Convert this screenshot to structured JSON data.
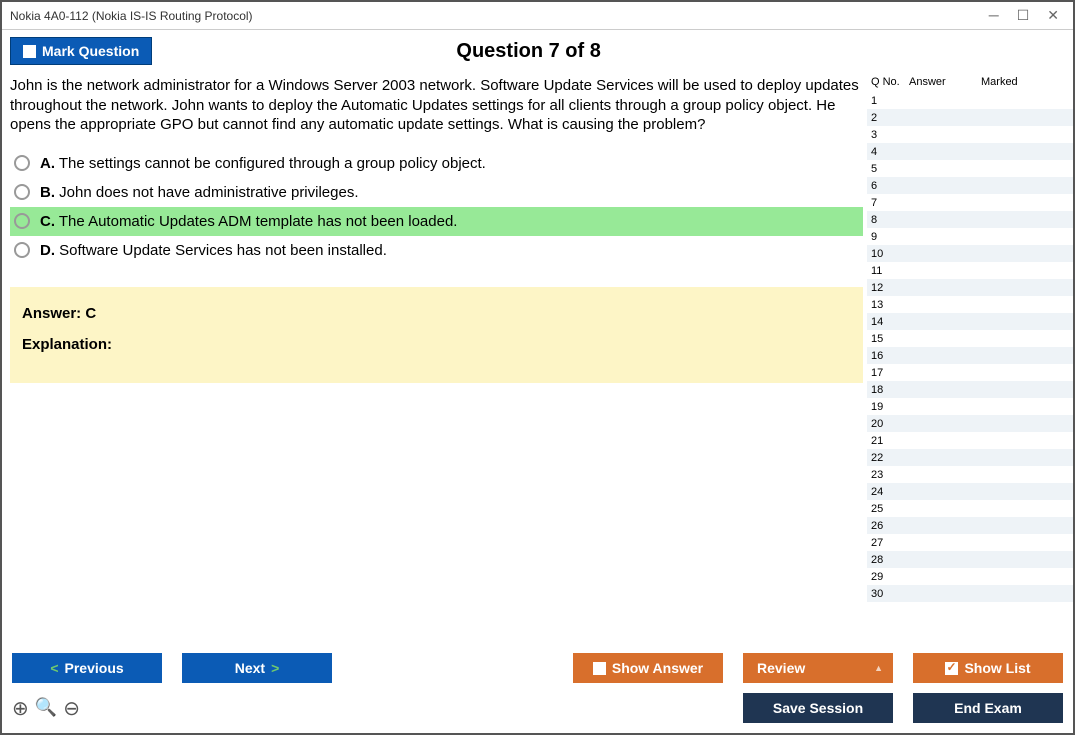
{
  "window": {
    "title": "Nokia 4A0-112 (Nokia IS-IS Routing Protocol)"
  },
  "header": {
    "mark_label": "Mark Question",
    "question_title": "Question 7 of 8"
  },
  "question": {
    "text": "John is the network administrator for a Windows Server 2003 network. Software Update Services will be used to deploy updates throughout the network. John wants to deploy the Automatic Updates settings for all clients through a group policy object. He opens the appropriate GPO but cannot find any automatic update settings. What is causing the problem?",
    "options": [
      {
        "letter": "A.",
        "text": "The settings cannot be configured through a group policy object.",
        "correct": false
      },
      {
        "letter": "B.",
        "text": "John does not have administrative privileges.",
        "correct": false
      },
      {
        "letter": "C.",
        "text": "The Automatic Updates ADM template has not been loaded.",
        "correct": true
      },
      {
        "letter": "D.",
        "text": "Software Update Services has not been installed.",
        "correct": false
      }
    ]
  },
  "answer_box": {
    "answer_label": "Answer: C",
    "explanation_label": "Explanation:"
  },
  "side": {
    "headers": {
      "qno": "Q No.",
      "answer": "Answer",
      "marked": "Marked"
    },
    "total_rows": 30
  },
  "footer": {
    "previous": "Previous",
    "next": "Next",
    "show_answer": "Show Answer",
    "review": "Review",
    "show_list": "Show List",
    "save_session": "Save Session",
    "end_exam": "End Exam"
  },
  "colors": {
    "blue": "#0b5bb5",
    "orange": "#d86f2c",
    "navy": "#1f3552",
    "correct_bg": "#97e997",
    "answer_bg": "#fdf5c6",
    "alt_row": "#eef3f7"
  }
}
